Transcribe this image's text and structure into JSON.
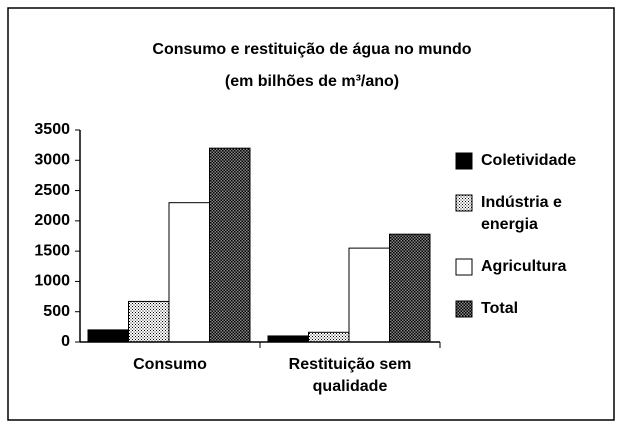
{
  "chart_data": {
    "type": "bar",
    "title": "Consumo e restituição de água no mundo",
    "subtitle": "(em bilhões de m³/ano)",
    "categories": [
      "Consumo",
      "Restituição sem qualidade"
    ],
    "series": [
      {
        "name": "Coletividade",
        "color": "#000000",
        "pattern": "solid",
        "values": [
          200,
          100
        ]
      },
      {
        "name": "Indústria e energia",
        "color": "#ffffff",
        "pattern": "dots",
        "values": [
          670,
          160
        ]
      },
      {
        "name": "Agricultura",
        "color": "#ffffff",
        "pattern": "solid",
        "values": [
          2300,
          1550
        ]
      },
      {
        "name": "Total",
        "color": "#ffffff",
        "pattern": "crosshatch",
        "values": [
          3200,
          1780
        ]
      }
    ],
    "ylim": [
      0,
      3500
    ],
    "yticks": [
      0,
      500,
      1000,
      1500,
      2000,
      2500,
      3000,
      3500
    ],
    "grid": false,
    "legend": "right"
  }
}
